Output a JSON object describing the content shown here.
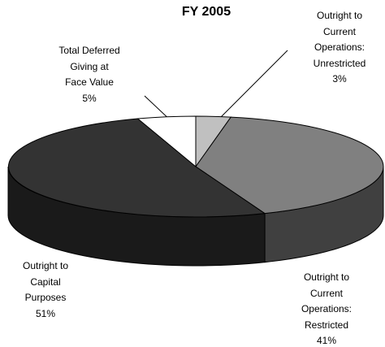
{
  "chart_data": {
    "type": "pie3d",
    "title": "FY 2005",
    "categories": [
      "Outright to\nCurrent\nOperations:\nUnrestricted",
      "Outright to\nCurrent\nOperations:\nRestricted",
      "Outright to\nCapital\nPurposes",
      "Total Deferred\nGiving at\nFace Value"
    ],
    "values": [
      3,
      41,
      51,
      5
    ],
    "value_labels": [
      "3%",
      "41%",
      "51%",
      "5%"
    ],
    "colors": [
      "#c0c0c0",
      "#808080",
      "#333333",
      "#ffffff"
    ]
  }
}
